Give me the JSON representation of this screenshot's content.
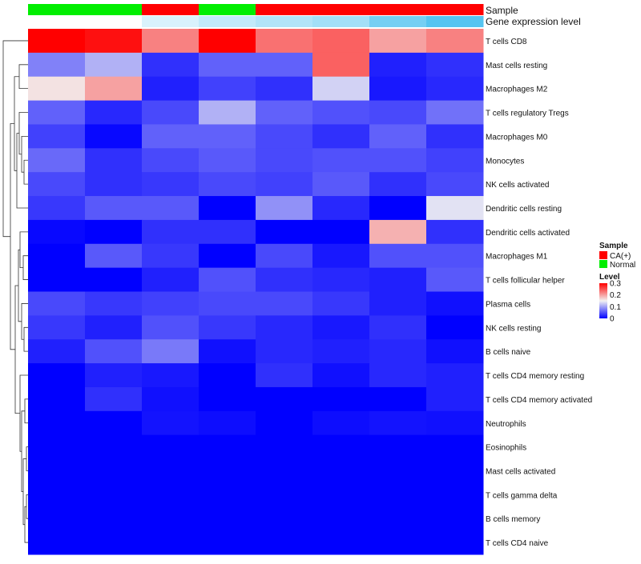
{
  "chart_data": {
    "type": "heatmap",
    "annotation_rows": [
      {
        "label": "Sample",
        "values": [
          "Normal",
          "Normal",
          "CA(+)",
          "Normal",
          "CA(+)",
          "CA(+)",
          "CA(+)",
          "CA(+)"
        ]
      },
      {
        "label": "Gene expression level",
        "values": [
          0,
          0,
          0.05,
          0.08,
          0.1,
          0.12,
          0.18,
          0.22
        ]
      }
    ],
    "rows": [
      {
        "label": "T cells CD8",
        "values": [
          0.3,
          0.29,
          0.22,
          0.3,
          0.23,
          0.24,
          0.2,
          0.22
        ]
      },
      {
        "label": "Mast cells resting",
        "values": [
          0.08,
          0.11,
          0.03,
          0.06,
          0.06,
          0.24,
          0.02,
          0.03
        ]
      },
      {
        "label": "Macrophages M2",
        "values": [
          0.16,
          0.2,
          0.02,
          0.04,
          0.03,
          0.13,
          0.015,
          0.025
        ]
      },
      {
        "label": "T cells regulatory  Tregs",
        "values": [
          0.06,
          0.025,
          0.045,
          0.11,
          0.06,
          0.05,
          0.045,
          0.07
        ]
      },
      {
        "label": "Macrophages M0",
        "values": [
          0.04,
          0.005,
          0.06,
          0.06,
          0.045,
          0.03,
          0.06,
          0.03
        ]
      },
      {
        "label": "Monocytes",
        "values": [
          0.065,
          0.03,
          0.045,
          0.055,
          0.045,
          0.05,
          0.05,
          0.04
        ]
      },
      {
        "label": "NK cells activated",
        "values": [
          0.045,
          0.03,
          0.035,
          0.045,
          0.04,
          0.055,
          0.03,
          0.045
        ]
      },
      {
        "label": "Dendritic cells resting",
        "values": [
          0.035,
          0.055,
          0.055,
          0.0,
          0.09,
          0.025,
          0.0,
          0.14
        ]
      },
      {
        "label": "Dendritic cells activated",
        "values": [
          0.005,
          0.0,
          0.03,
          0.03,
          0.0,
          0.0,
          0.19,
          0.03
        ]
      },
      {
        "label": "Macrophages M1",
        "values": [
          0.0,
          0.055,
          0.035,
          0.0,
          0.045,
          0.015,
          0.05,
          0.05
        ]
      },
      {
        "label": "T cells follicular helper",
        "values": [
          0.0,
          0.0,
          0.02,
          0.05,
          0.03,
          0.025,
          0.02,
          0.055
        ]
      },
      {
        "label": "Plasma cells",
        "values": [
          0.045,
          0.035,
          0.04,
          0.045,
          0.045,
          0.035,
          0.02,
          0.01
        ]
      },
      {
        "label": "NK cells resting",
        "values": [
          0.035,
          0.02,
          0.05,
          0.035,
          0.025,
          0.015,
          0.03,
          0.0
        ]
      },
      {
        "label": "B cells naive",
        "values": [
          0.02,
          0.05,
          0.075,
          0.01,
          0.025,
          0.02,
          0.025,
          0.01
        ]
      },
      {
        "label": "T cells CD4 memory resting",
        "values": [
          0.0,
          0.02,
          0.015,
          0.0,
          0.03,
          0.01,
          0.025,
          0.02
        ]
      },
      {
        "label": "T cells CD4 memory activated",
        "values": [
          0.0,
          0.03,
          0.01,
          0.0,
          0.0,
          0.0,
          0.0,
          0.02
        ]
      },
      {
        "label": "Neutrophils",
        "values": [
          0.0,
          0.0,
          0.012,
          0.008,
          0.0,
          0.008,
          0.012,
          0.01
        ]
      },
      {
        "label": "Eosinophils",
        "values": [
          0,
          0,
          0,
          0,
          0,
          0,
          0,
          0
        ]
      },
      {
        "label": "Mast cells activated",
        "values": [
          0,
          0,
          0,
          0,
          0,
          0,
          0,
          0
        ]
      },
      {
        "label": "T cells gamma delta",
        "values": [
          0,
          0,
          0,
          0,
          0,
          0,
          0,
          0
        ]
      },
      {
        "label": "B cells memory",
        "values": [
          0,
          0,
          0,
          0,
          0,
          0,
          0,
          0
        ]
      },
      {
        "label": "T cells CD4 naive",
        "values": [
          0,
          0,
          0,
          0,
          0,
          0,
          0,
          0
        ]
      }
    ],
    "color_scale": {
      "min": 0,
      "max": 0.3,
      "low": "#0000ff",
      "mid": "#f2f2f2",
      "high": "#ff0000",
      "midpoint": 0.15
    },
    "sample_colors": {
      "CA(+)": "#ff0000",
      "Normal": "#00ee00"
    },
    "expression_scale": {
      "low": "#ffffff",
      "high": "#56c4f0"
    },
    "legend": {
      "sample_title": "Sample",
      "sample_items": [
        "CA(+)",
        "Normal"
      ],
      "level_title": "Level",
      "level_ticks": [
        "0.3",
        "0.2",
        "0.1",
        "0"
      ],
      "level_tick_values": [
        0.3,
        0.2,
        0.1,
        0
      ]
    }
  }
}
